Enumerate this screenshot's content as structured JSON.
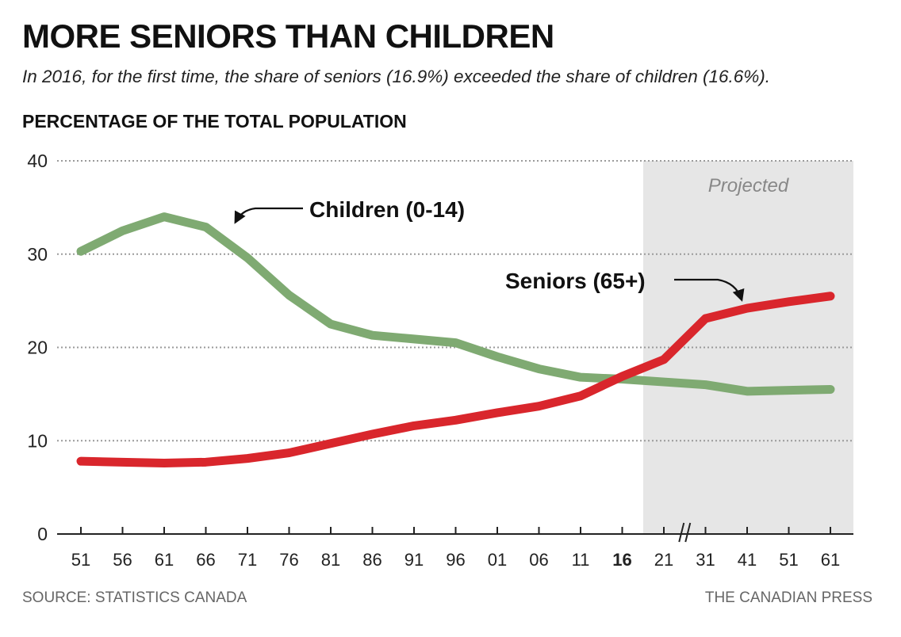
{
  "title": "MORE SENIORS THAN CHILDREN",
  "subtitle": "In 2016, for the first time, the share of seniors (16.9%) exceeded the share of children (16.6%).",
  "ylabel": "PERCENTAGE OF THE TOTAL POPULATION",
  "source": "SOURCE: STATISTICS CANADA",
  "credit": "THE CANADIAN PRESS",
  "projected_label": "Projected",
  "colors": {
    "children": "#7faa72",
    "seniors": "#d9262c",
    "projected_band": "#e6e6e6"
  },
  "chart_data": {
    "type": "line",
    "categories": [
      "51",
      "56",
      "61",
      "66",
      "71",
      "76",
      "81",
      "86",
      "91",
      "96",
      "01",
      "06",
      "11",
      "16",
      "21",
      "31",
      "41",
      "51",
      "61"
    ],
    "highlight_category": "16",
    "projected_from": "21",
    "axis_break_between": [
      "21",
      "31"
    ],
    "series": [
      {
        "name": "Children (0-14)",
        "values": [
          30.3,
          32.5,
          34.0,
          32.9,
          29.6,
          25.6,
          22.5,
          21.3,
          20.9,
          20.5,
          19.0,
          17.7,
          16.8,
          16.6,
          16.3,
          16.0,
          15.3,
          15.4,
          15.5
        ]
      },
      {
        "name": "Seniors (65+)",
        "values": [
          7.8,
          7.7,
          7.6,
          7.7,
          8.1,
          8.7,
          9.7,
          10.7,
          11.6,
          12.2,
          13.0,
          13.7,
          14.8,
          16.9,
          18.7,
          23.1,
          24.2,
          24.9,
          25.5
        ]
      }
    ],
    "yticks": [
      0,
      10,
      20,
      30,
      40
    ],
    "ylim": [
      0,
      40
    ],
    "grid": true
  }
}
